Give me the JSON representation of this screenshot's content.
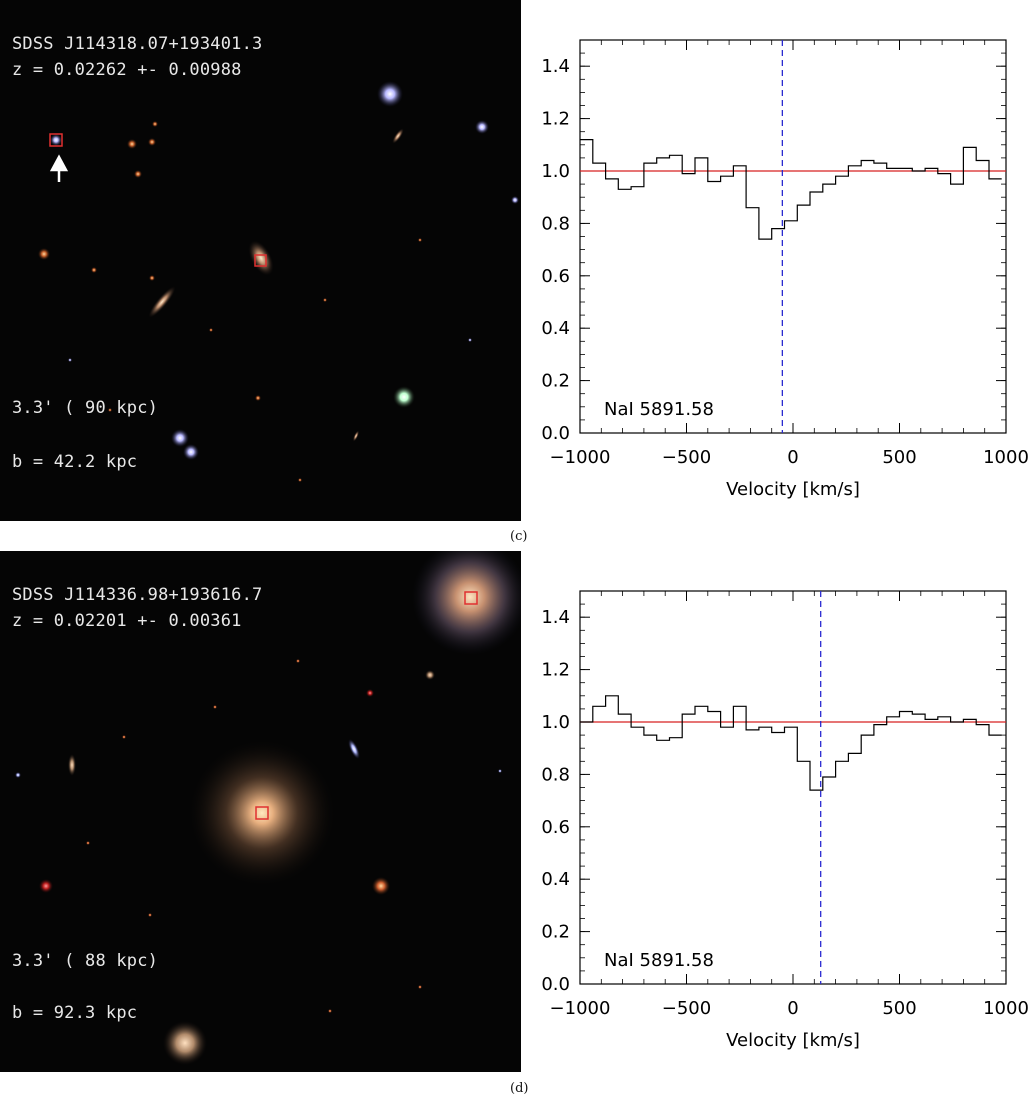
{
  "panels": [
    {
      "id": "c",
      "caption": "(c)",
      "image": {
        "object_name": "SDSS J114318.07+193401.3",
        "redshift": "z = 0.02262 +- 0.00988",
        "scale": "3.3' ( 90 kpc)",
        "impact": "b = 42.2 kpc"
      }
    },
    {
      "id": "d",
      "caption": "(d)",
      "image": {
        "object_name": "SDSS J114336.98+193616.7",
        "redshift": "z = 0.02201 +- 0.00361",
        "scale": "3.3' ( 88 kpc)",
        "impact": "b = 92.3 kpc"
      }
    }
  ],
  "chart_data": [
    {
      "type": "line",
      "subtype": "step",
      "panel": "c",
      "title": "",
      "xlabel": "Velocity [km/s]",
      "ylabel": "",
      "xlim": [
        -1000,
        1000
      ],
      "ylim": [
        0,
        1.5
      ],
      "xticks": [
        -1000,
        -500,
        0,
        500,
        1000
      ],
      "xtick_labels": [
        "−1000",
        "−500",
        "0",
        "500",
        "1000"
      ],
      "yticks": [
        0.0,
        0.2,
        0.4,
        0.6,
        0.8,
        1.0,
        1.2,
        1.4
      ],
      "ytick_labels": [
        "0.0",
        "0.2",
        "0.4",
        "0.6",
        "0.8",
        "1.0",
        "1.2",
        "1.4"
      ],
      "line_label": "NaI 5891.58",
      "continuum": 1.0,
      "continuum_color": "#d62020",
      "systemic_velocity": -50,
      "systemic_color": "#2a2ad0",
      "series": [
        {
          "name": "NaI 5891.58 normalized flux",
          "x": [
            -1000,
            -940,
            -880,
            -820,
            -760,
            -700,
            -640,
            -580,
            -520,
            -460,
            -400,
            -340,
            -280,
            -220,
            -160,
            -100,
            -40,
            20,
            80,
            140,
            200,
            260,
            320,
            380,
            440,
            500,
            560,
            620,
            680,
            740,
            800,
            860,
            920
          ],
          "values": [
            1.12,
            1.03,
            0.97,
            0.93,
            0.94,
            1.03,
            1.05,
            1.06,
            0.99,
            1.05,
            0.96,
            0.98,
            1.02,
            0.86,
            0.74,
            0.78,
            0.81,
            0.87,
            0.92,
            0.95,
            0.98,
            1.02,
            1.04,
            1.03,
            1.01,
            1.01,
            1.0,
            1.01,
            0.99,
            0.95,
            1.09,
            1.04,
            0.97
          ]
        }
      ]
    },
    {
      "type": "line",
      "subtype": "step",
      "panel": "d",
      "title": "",
      "xlabel": "Velocity [km/s]",
      "ylabel": "",
      "xlim": [
        -1000,
        1000
      ],
      "ylim": [
        0,
        1.5
      ],
      "xticks": [
        -1000,
        -500,
        0,
        500,
        1000
      ],
      "xtick_labels": [
        "−1000",
        "−500",
        "0",
        "500",
        "1000"
      ],
      "yticks": [
        0.0,
        0.2,
        0.4,
        0.6,
        0.8,
        1.0,
        1.2,
        1.4
      ],
      "ytick_labels": [
        "0.0",
        "0.2",
        "0.4",
        "0.6",
        "0.8",
        "1.0",
        "1.2",
        "1.4"
      ],
      "line_label": "NaI 5891.58",
      "continuum": 1.0,
      "continuum_color": "#d62020",
      "systemic_velocity": 130,
      "systemic_color": "#2a2ad0",
      "series": [
        {
          "name": "NaI 5891.58 normalized flux",
          "x": [
            -1000,
            -940,
            -880,
            -820,
            -760,
            -700,
            -640,
            -580,
            -520,
            -460,
            -400,
            -340,
            -280,
            -220,
            -160,
            -100,
            -40,
            20,
            80,
            140,
            200,
            260,
            320,
            380,
            440,
            500,
            560,
            620,
            680,
            740,
            800,
            860,
            920
          ],
          "values": [
            1.0,
            1.06,
            1.1,
            1.03,
            0.98,
            0.95,
            0.93,
            0.94,
            1.03,
            1.06,
            1.04,
            0.98,
            1.06,
            0.97,
            0.98,
            0.96,
            0.98,
            0.85,
            0.74,
            0.79,
            0.85,
            0.88,
            0.95,
            0.99,
            1.02,
            1.04,
            1.03,
            1.01,
            1.02,
            1.0,
            1.01,
            0.99,
            0.95
          ]
        }
      ]
    }
  ]
}
